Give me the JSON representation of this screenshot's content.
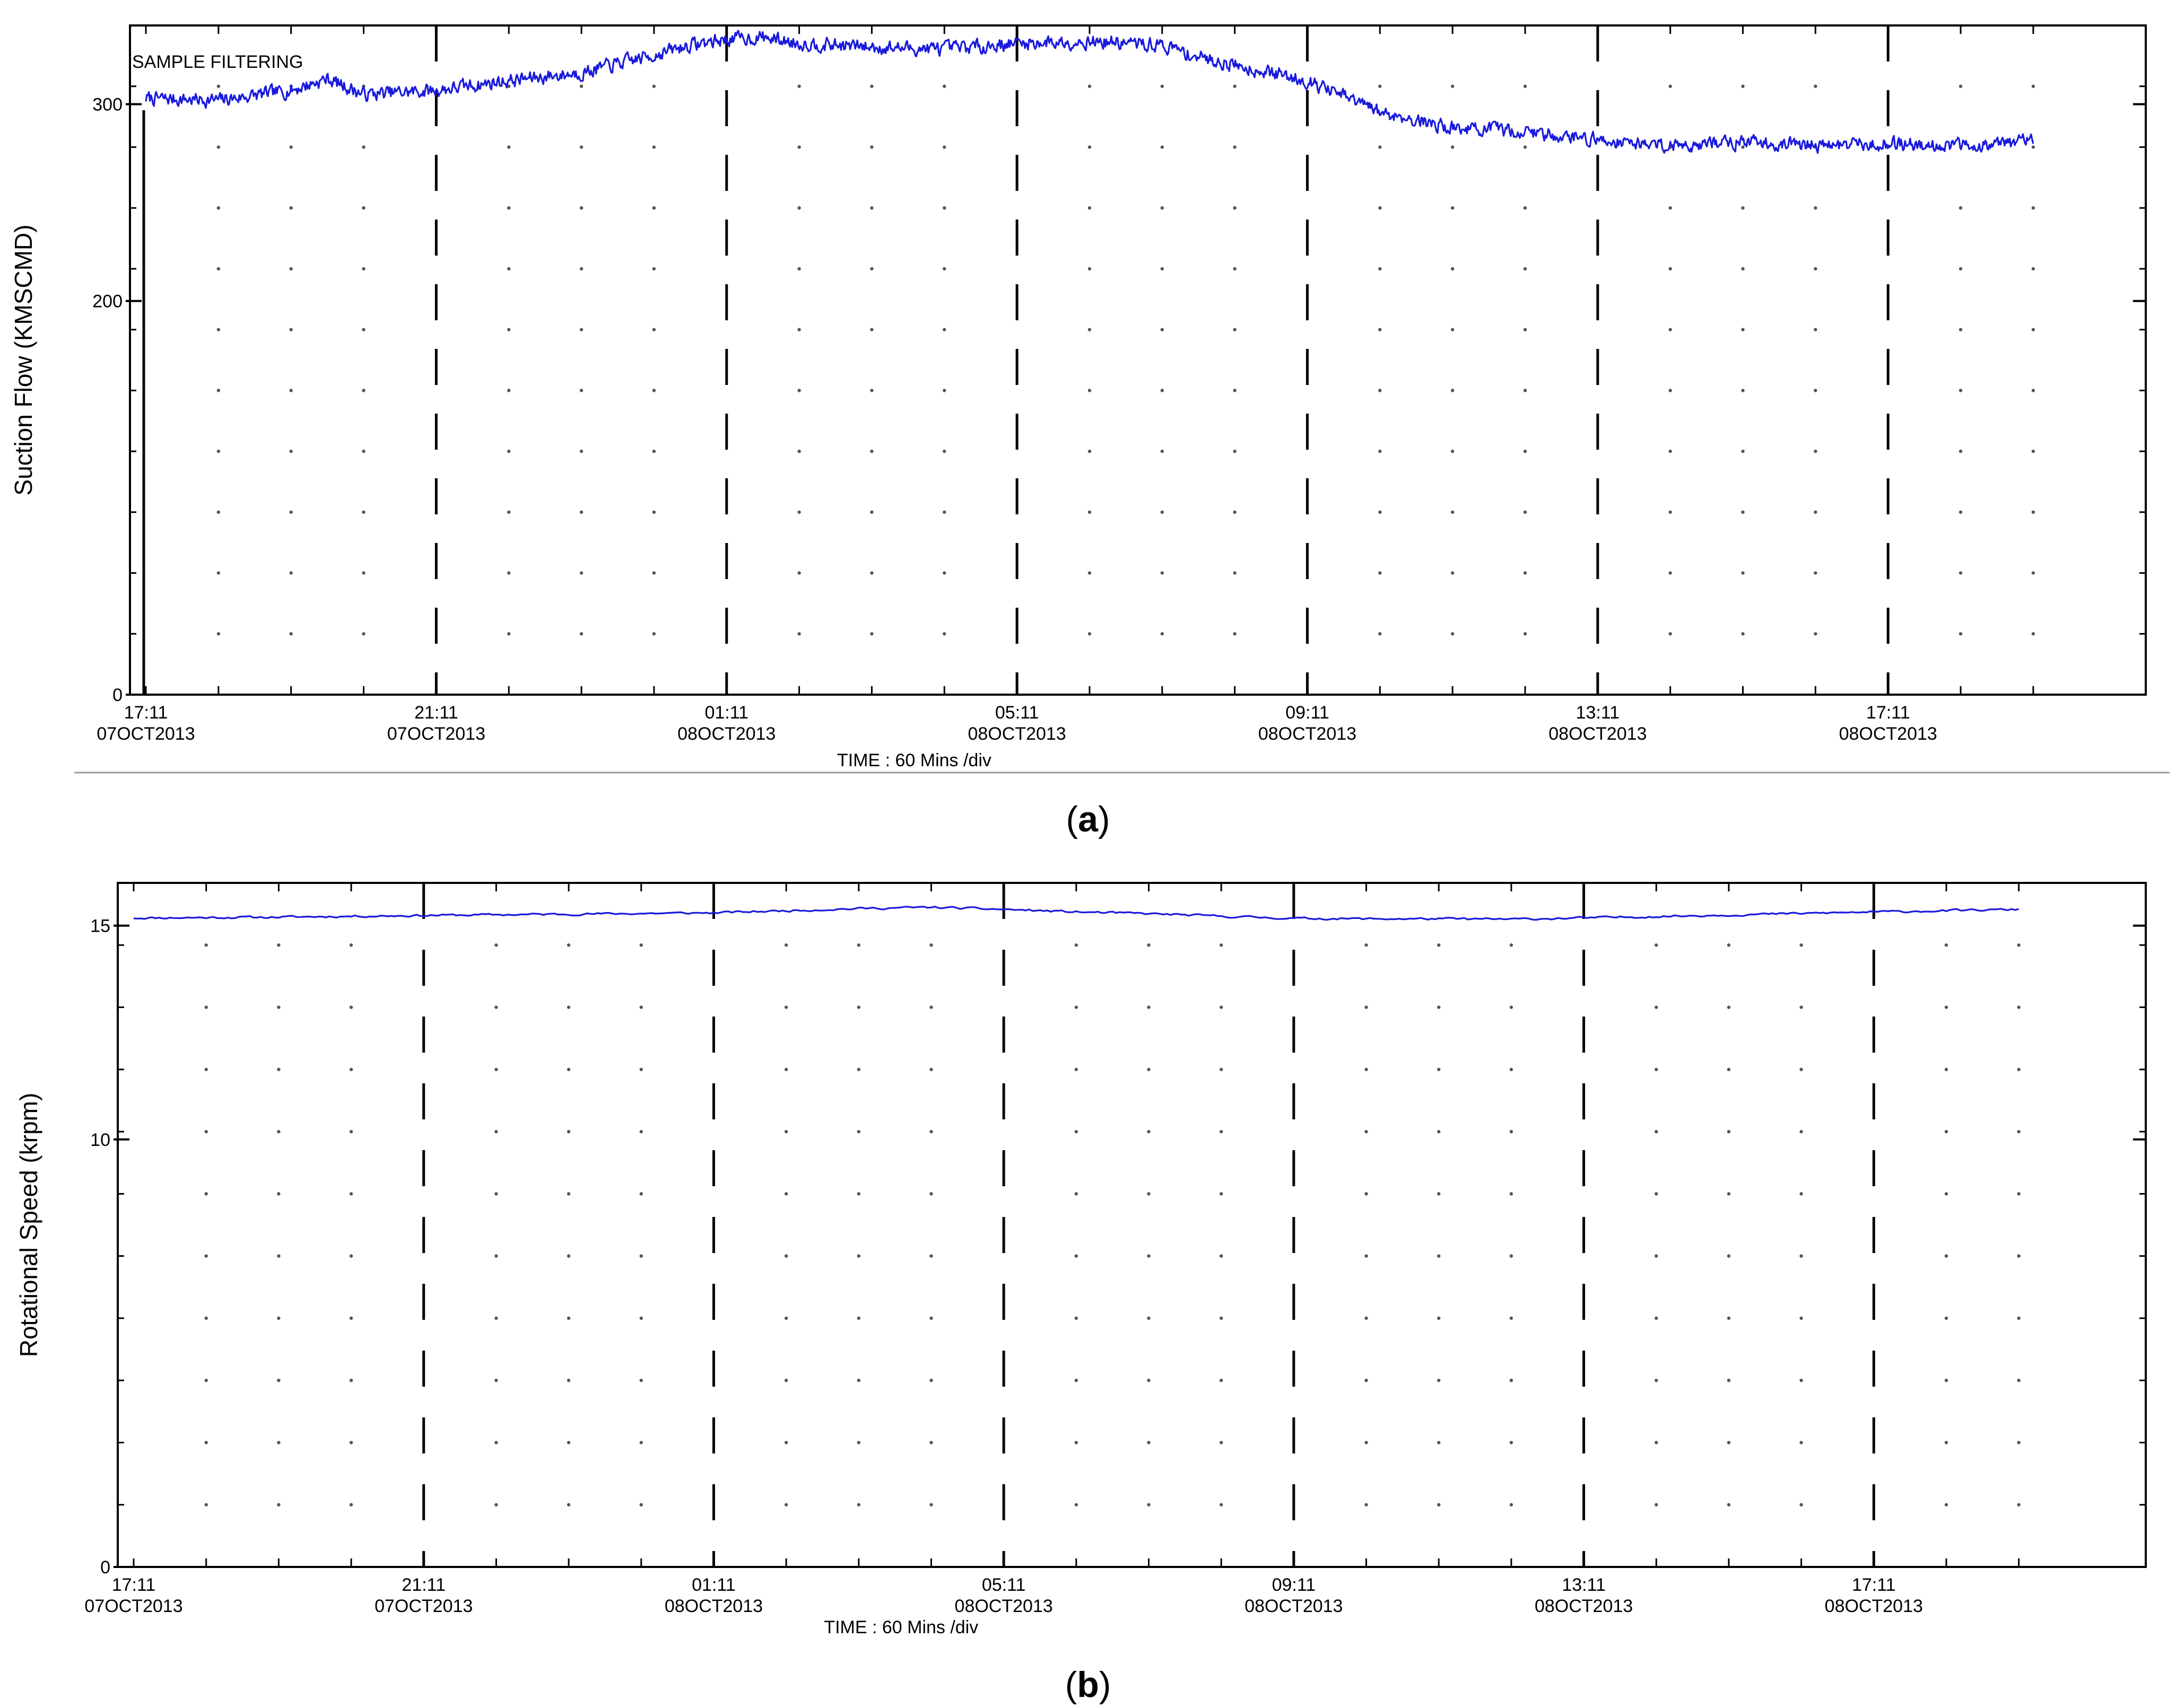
{
  "figure": {
    "panel_a_label": "a",
    "panel_b_label": "b",
    "paren_open": "(",
    "paren_close": ")"
  },
  "chart_data": [
    {
      "id": "a",
      "type": "line",
      "title": "",
      "annotation": "SAMPLE FILTERING",
      "ylabel": "Suction Flow (KMSCMD)",
      "xlabel": "TIME : 60 Mins /div",
      "ylim": [
        0,
        340
      ],
      "yticks": [
        0,
        200,
        300
      ],
      "x_tick_labels": [
        {
          "time": "17:11",
          "date": "07OCT2013"
        },
        {
          "time": "21:11",
          "date": "07OCT2013"
        },
        {
          "time": "01:11",
          "date": "08OCT2013"
        },
        {
          "time": "05:11",
          "date": "08OCT2013"
        },
        {
          "time": "09:11",
          "date": "08OCT2013"
        },
        {
          "time": "13:11",
          "date": "08OCT2013"
        },
        {
          "time": "17:11",
          "date": "08OCT2013"
        }
      ],
      "x_unit": "hours since 17:11 07OCT2013",
      "xlim": [
        0,
        26.6
      ],
      "grid": true,
      "line_color": "#1a1adc",
      "series": [
        {
          "x": [
            0,
            1,
            2,
            2.5,
            3,
            4,
            5,
            6,
            7,
            7.5,
            8,
            8.5,
            9,
            10,
            11,
            12,
            13,
            14,
            14.5,
            15,
            15.5,
            16,
            16.5,
            17,
            18,
            19,
            19.5,
            20,
            21,
            22,
            22.5,
            23,
            24,
            25,
            26
          ],
          "y": [
            303,
            302,
            307,
            313,
            305,
            307,
            312,
            316,
            325,
            330,
            333,
            334,
            331,
            329,
            328,
            331,
            332,
            330,
            324,
            320,
            316,
            312,
            304,
            296,
            288,
            286,
            284,
            282,
            279,
            281,
            280,
            279,
            280,
            279,
            281
          ]
        }
      ]
    },
    {
      "id": "b",
      "type": "line",
      "title": "",
      "ylabel": "Rotational Speed (krpm)",
      "xlabel": "TIME : 60 Mins /div",
      "ylim": [
        0,
        16
      ],
      "yticks": [
        0,
        10,
        15
      ],
      "x_tick_labels": [
        {
          "time": "17:11",
          "date": "07OCT2013"
        },
        {
          "time": "21:11",
          "date": "07OCT2013"
        },
        {
          "time": "01:11",
          "date": "08OCT2013"
        },
        {
          "time": "05:11",
          "date": "08OCT2013"
        },
        {
          "time": "09:11",
          "date": "08OCT2013"
        },
        {
          "time": "13:11",
          "date": "08OCT2013"
        },
        {
          "time": "17:11",
          "date": "08OCT2013"
        }
      ],
      "x_unit": "hours since 17:11 07OCT2013",
      "xlim": [
        0,
        26.8
      ],
      "grid": true,
      "line_color": "#1a1adc",
      "series": [
        {
          "x": [
            0,
            2,
            4,
            6,
            8,
            9,
            10,
            11,
            12,
            13,
            14,
            15,
            16,
            17,
            18,
            19,
            20,
            22,
            24,
            25,
            26
          ],
          "y": [
            15.18,
            15.2,
            15.24,
            15.27,
            15.3,
            15.35,
            15.4,
            15.43,
            15.38,
            15.32,
            15.28,
            15.22,
            15.17,
            15.16,
            15.16,
            15.15,
            15.18,
            15.25,
            15.32,
            15.35,
            15.38
          ]
        }
      ]
    }
  ]
}
